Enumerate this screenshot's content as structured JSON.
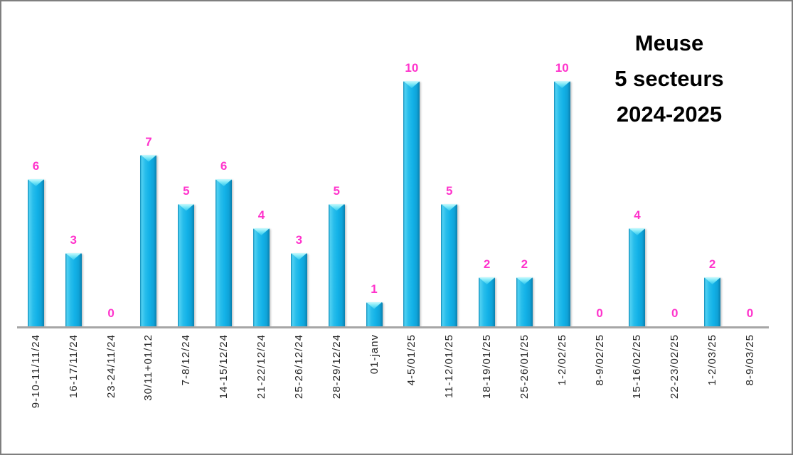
{
  "title": {
    "lines": [
      "Meuse",
      "5 secteurs",
      "2024-2025"
    ]
  },
  "chart_data": {
    "type": "bar",
    "title": "Meuse 5 secteurs 2024-2025",
    "categories": [
      "9-10-11/11/24",
      "16-17/11/24",
      "23-24/11/24",
      "30/11+01/12",
      "7-8/12/24",
      "14-15/12/24",
      "21-22/12/24",
      "25-26/12/24",
      "28-29/12/24",
      "01-janv",
      "4-5/01/25",
      "11-12/01/25",
      "18-19/01/25",
      "25-26/01/25",
      "1-2/02/25",
      "8-9/02/25",
      "15-16/02/25",
      "22-23/02/25",
      "1-2/03/25",
      "8-9/03/25"
    ],
    "values": [
      6,
      3,
      0,
      7,
      5,
      6,
      4,
      3,
      5,
      1,
      10,
      5,
      2,
      2,
      10,
      0,
      4,
      0,
      2,
      0
    ],
    "xlabel": "",
    "ylabel": "",
    "ylim": [
      0,
      10
    ],
    "grid": false,
    "legend": "none",
    "value_labels_shown": true,
    "colors": {
      "bar_fill": "#12B1E7",
      "bar_highlight": "#79E7F7",
      "bar_edge_dark": "#0A80AE",
      "value_label": "#FF33CC",
      "axis_line": "#A6A6A6",
      "tick_label": "#262626",
      "title": "#000000",
      "window_border": "#7F7F7F",
      "background": "#FFFFFF"
    }
  }
}
